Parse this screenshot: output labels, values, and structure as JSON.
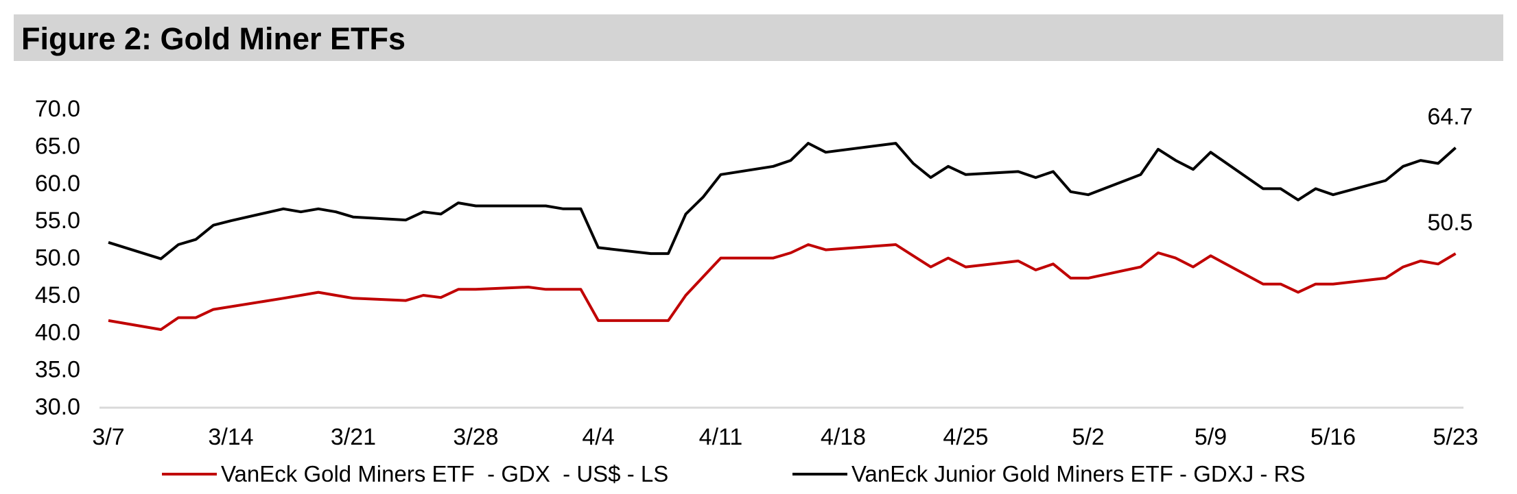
{
  "title": "Figure 2: Gold Miner ETFs",
  "colors": {
    "gdx": "#c00000",
    "gdxj": "#000000",
    "axis": "#d9d9d9",
    "title_bg": "#d4d4d4"
  },
  "chart_data": {
    "type": "line",
    "title": "Figure 2: Gold Miner ETFs",
    "xlabel": "",
    "ylabel": "",
    "x_ticks": [
      "3/7",
      "3/14",
      "3/21",
      "3/28",
      "4/4",
      "4/11",
      "4/18",
      "4/25",
      "5/2",
      "5/9",
      "5/16",
      "5/23"
    ],
    "y_ticks": [
      "70.0",
      "65.0",
      "60.0",
      "55.0",
      "50.0",
      "45.0",
      "40.0",
      "35.0",
      "30.0"
    ],
    "ylim": [
      30,
      70
    ],
    "grid": false,
    "legend_position": "bottom",
    "series": [
      {
        "name": "VanEck Gold Miners ETF  - GDX  - US$ - LS",
        "color": "#c00000",
        "x": [
          "3/7",
          "3/10",
          "3/11",
          "3/12",
          "3/13",
          "3/17",
          "3/18",
          "3/19",
          "3/20",
          "3/21",
          "3/24",
          "3/25",
          "3/26",
          "3/27",
          "3/28",
          "3/31",
          "4/1",
          "4/2",
          "4/3",
          "4/4",
          "4/7",
          "4/8",
          "4/9",
          "4/10",
          "4/11",
          "4/14",
          "4/15",
          "4/16",
          "4/17",
          "4/21",
          "4/22",
          "4/23",
          "4/24",
          "4/25",
          "4/28",
          "4/29",
          "4/30",
          "5/1",
          "5/2",
          "5/5",
          "5/6",
          "5/7",
          "5/8",
          "5/9",
          "5/12",
          "5/13",
          "5/14",
          "5/15",
          "5/16",
          "5/19",
          "5/20",
          "5/21",
          "5/22",
          "5/23"
        ],
        "values": [
          41.5,
          40.3,
          41.9,
          41.9,
          43.0,
          44.5,
          44.9,
          45.3,
          44.9,
          44.5,
          44.2,
          44.9,
          44.6,
          45.7,
          45.7,
          46.0,
          45.7,
          45.7,
          45.7,
          41.5,
          41.5,
          41.5,
          44.9,
          47.4,
          49.9,
          49.9,
          50.6,
          51.7,
          51.0,
          51.7,
          50.2,
          48.7,
          49.9,
          48.7,
          49.5,
          48.3,
          49.1,
          47.2,
          47.2,
          48.7,
          50.6,
          49.9,
          48.7,
          50.2,
          46.4,
          46.4,
          45.3,
          46.4,
          46.4,
          47.2,
          48.7,
          49.5,
          49.1,
          50.5
        ]
      },
      {
        "name": "VanEck Junior Gold Miners ETF - GDXJ - RS",
        "color": "#000000",
        "x": [
          "3/7",
          "3/10",
          "3/11",
          "3/12",
          "3/13",
          "3/14",
          "3/17",
          "3/18",
          "3/19",
          "3/20",
          "3/21",
          "3/24",
          "3/25",
          "3/26",
          "3/27",
          "3/28",
          "3/31",
          "4/1",
          "4/2",
          "4/3",
          "4/4",
          "4/7",
          "4/8",
          "4/9",
          "4/10",
          "4/11",
          "4/14",
          "4/15",
          "4/16",
          "4/17",
          "4/21",
          "4/22",
          "4/23",
          "4/24",
          "4/25",
          "4/28",
          "4/29",
          "4/30",
          "5/1",
          "5/2",
          "5/5",
          "5/6",
          "5/7",
          "5/8",
          "5/9",
          "5/12",
          "5/13",
          "5/14",
          "5/15",
          "5/16",
          "5/19",
          "5/20",
          "5/21",
          "5/22",
          "5/23"
        ],
        "values": [
          52.0,
          49.8,
          51.7,
          52.4,
          54.3,
          54.9,
          56.5,
          56.1,
          56.5,
          56.1,
          55.4,
          55.0,
          56.1,
          55.8,
          57.3,
          56.9,
          56.9,
          56.9,
          56.5,
          56.5,
          51.3,
          50.5,
          50.5,
          55.8,
          58.1,
          61.1,
          62.2,
          63.0,
          65.3,
          64.1,
          65.3,
          62.6,
          60.7,
          62.2,
          61.1,
          61.5,
          60.7,
          61.5,
          58.8,
          58.4,
          61.1,
          64.5,
          63.0,
          61.8,
          64.1,
          59.2,
          59.2,
          57.7,
          59.2,
          58.4,
          60.3,
          62.2,
          63.0,
          62.6,
          64.7
        ]
      }
    ],
    "annotations": [
      "64.7",
      "50.5"
    ]
  }
}
